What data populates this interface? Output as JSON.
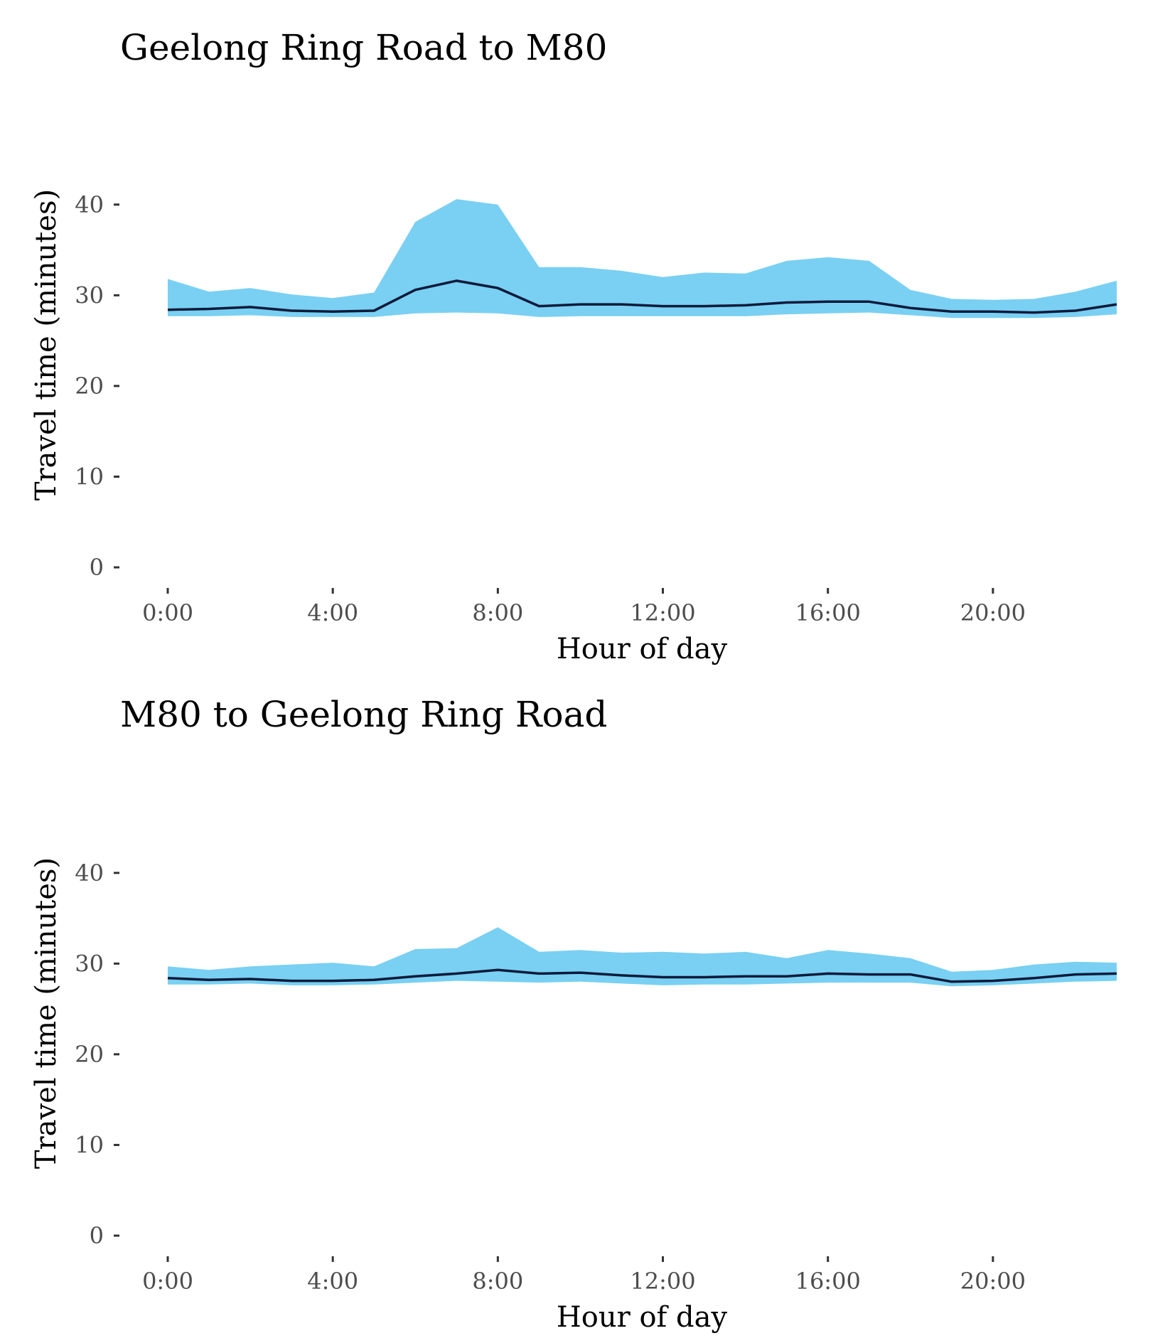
{
  "colors": {
    "band": "#79d0f3",
    "line": "#0b1a3a",
    "tick_text": "#4d4d4d",
    "tick_mark": "#333333"
  },
  "chart_data": [
    {
      "type": "area",
      "title": "Geelong Ring Road to M80",
      "xlabel": "Hour of day",
      "ylabel": "Travel time (minutes)",
      "xlim": [
        0,
        23
      ],
      "ylim": [
        0,
        45
      ],
      "x_ticks": [
        {
          "value": 0,
          "label": "0:00"
        },
        {
          "value": 4,
          "label": "4:00"
        },
        {
          "value": 8,
          "label": "8:00"
        },
        {
          "value": 12,
          "label": "12:00"
        },
        {
          "value": 16,
          "label": "16:00"
        },
        {
          "value": 20,
          "label": "20:00"
        }
      ],
      "y_ticks": [
        {
          "value": 0,
          "label": "0"
        },
        {
          "value": 10,
          "label": "10"
        },
        {
          "value": 20,
          "label": "20"
        },
        {
          "value": 30,
          "label": "30"
        },
        {
          "value": 40,
          "label": "40"
        }
      ],
      "grid": false,
      "x": [
        0,
        1,
        2,
        3,
        4,
        5,
        6,
        7,
        8,
        9,
        10,
        11,
        12,
        13,
        14,
        15,
        16,
        17,
        18,
        19,
        20,
        21,
        22,
        23
      ],
      "band_upper": [
        31.8,
        30.4,
        30.8,
        30.1,
        29.7,
        30.3,
        38.1,
        40.6,
        40.0,
        33.1,
        33.1,
        32.7,
        32.0,
        32.5,
        32.4,
        33.8,
        34.2,
        33.8,
        30.6,
        29.6,
        29.5,
        29.6,
        30.4,
        31.6
      ],
      "band_lower": [
        27.7,
        27.7,
        27.8,
        27.6,
        27.6,
        27.6,
        28.0,
        28.1,
        28.0,
        27.6,
        27.7,
        27.7,
        27.7,
        27.7,
        27.7,
        27.9,
        28.0,
        28.1,
        27.8,
        27.5,
        27.5,
        27.5,
        27.6,
        27.9
      ],
      "median": [
        28.4,
        28.5,
        28.7,
        28.3,
        28.2,
        28.3,
        30.6,
        31.6,
        30.8,
        28.8,
        29.0,
        29.0,
        28.8,
        28.8,
        28.9,
        29.2,
        29.3,
        29.3,
        28.6,
        28.2,
        28.2,
        28.1,
        28.3,
        29.0
      ]
    },
    {
      "type": "area",
      "title": "M80 to Geelong Ring Road",
      "xlabel": "Hour of day",
      "ylabel": "Travel time (minutes)",
      "xlim": [
        0,
        23
      ],
      "ylim": [
        0,
        45
      ],
      "x_ticks": [
        {
          "value": 0,
          "label": "0:00"
        },
        {
          "value": 4,
          "label": "4:00"
        },
        {
          "value": 8,
          "label": "8:00"
        },
        {
          "value": 12,
          "label": "12:00"
        },
        {
          "value": 16,
          "label": "16:00"
        },
        {
          "value": 20,
          "label": "20:00"
        }
      ],
      "y_ticks": [
        {
          "value": 0,
          "label": "0"
        },
        {
          "value": 10,
          "label": "10"
        },
        {
          "value": 20,
          "label": "20"
        },
        {
          "value": 30,
          "label": "30"
        },
        {
          "value": 40,
          "label": "40"
        }
      ],
      "grid": false,
      "x": [
        0,
        1,
        2,
        3,
        4,
        5,
        6,
        7,
        8,
        9,
        10,
        11,
        12,
        13,
        14,
        15,
        16,
        17,
        18,
        19,
        20,
        21,
        22,
        23
      ],
      "band_upper": [
        29.7,
        29.3,
        29.7,
        29.9,
        30.1,
        29.7,
        31.6,
        31.7,
        34.0,
        31.3,
        31.5,
        31.2,
        31.3,
        31.1,
        31.3,
        30.6,
        31.5,
        31.1,
        30.6,
        29.1,
        29.3,
        29.9,
        30.2,
        30.1
      ],
      "band_lower": [
        27.7,
        27.7,
        27.8,
        27.6,
        27.6,
        27.7,
        27.9,
        28.1,
        28.0,
        27.9,
        28.0,
        27.8,
        27.6,
        27.7,
        27.7,
        27.8,
        27.9,
        27.9,
        27.9,
        27.5,
        27.6,
        27.8,
        28.0,
        28.1
      ],
      "median": [
        28.4,
        28.2,
        28.3,
        28.1,
        28.1,
        28.2,
        28.6,
        28.9,
        29.3,
        28.9,
        29.0,
        28.7,
        28.5,
        28.5,
        28.6,
        28.6,
        28.9,
        28.8,
        28.8,
        28.0,
        28.1,
        28.4,
        28.8,
        28.9
      ]
    }
  ]
}
